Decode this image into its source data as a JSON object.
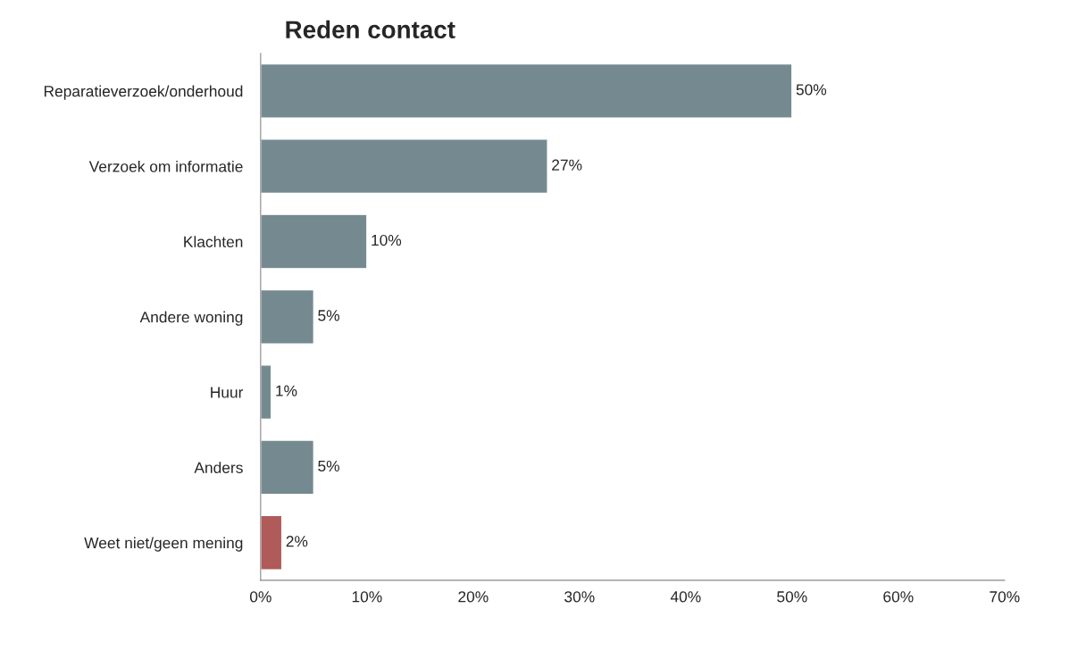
{
  "chart_data": {
    "type": "bar",
    "orientation": "horizontal",
    "title": "Reden contact",
    "categories": [
      "Reparatieverzoek/onderhoud",
      "Verzoek om informatie",
      "Klachten",
      "Andere woning",
      "Huur",
      "Anders",
      "Weet niet/geen mening"
    ],
    "values": [
      50,
      27,
      10,
      5,
      1,
      5,
      2
    ],
    "colors": [
      "#758a90",
      "#758a90",
      "#758a90",
      "#758a90",
      "#758a90",
      "#758a90",
      "#b05a5a"
    ],
    "value_labels": [
      "50%",
      "27%",
      "10%",
      "5%",
      "1%",
      "5%",
      "2%"
    ],
    "xlim": [
      0,
      70
    ],
    "xticks": [
      {
        "value": 0,
        "label": "0%"
      },
      {
        "value": 10,
        "label": "10%"
      },
      {
        "value": 20,
        "label": "20%"
      },
      {
        "value": 30,
        "label": "30%"
      },
      {
        "value": 40,
        "label": "40%"
      },
      {
        "value": 50,
        "label": "50%"
      },
      {
        "value": 60,
        "label": "60%"
      },
      {
        "value": 70,
        "label": "70%"
      }
    ],
    "grid": false,
    "legend": false
  }
}
